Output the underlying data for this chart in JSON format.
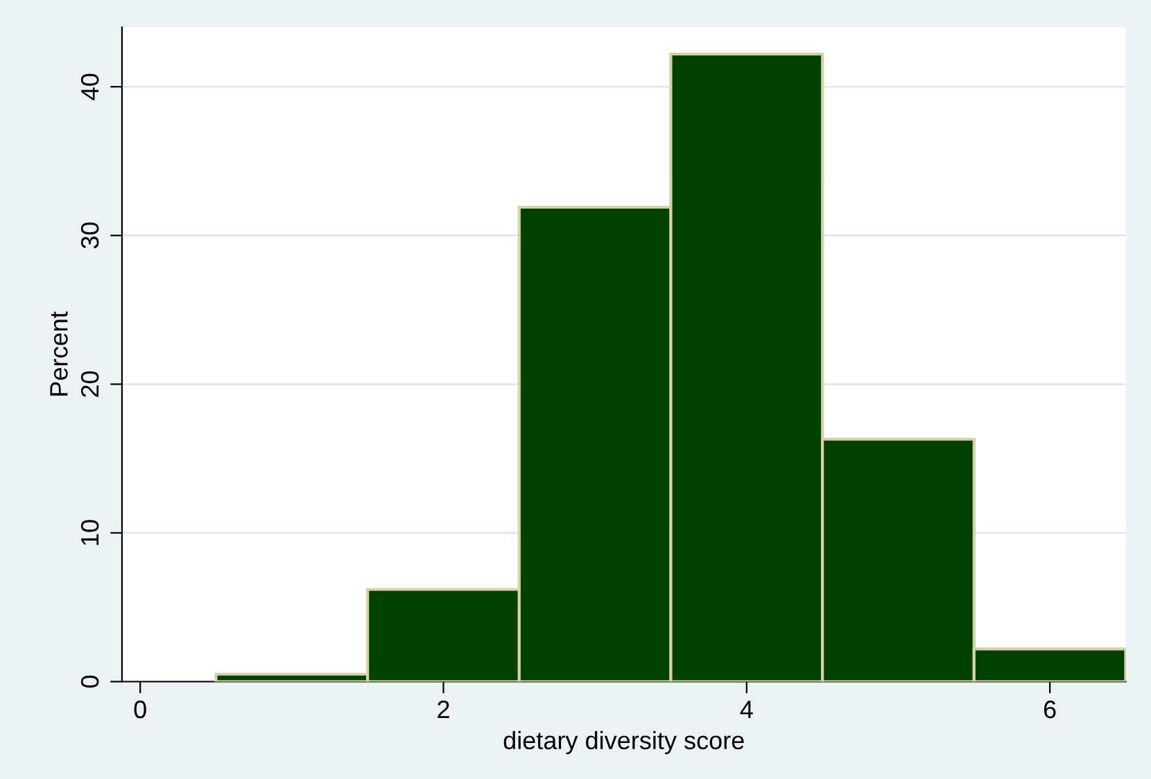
{
  "chart_data": {
    "type": "histogram",
    "xlabel": "dietary diversity score",
    "ylabel": "Percent",
    "bins": [
      0.5,
      1.5,
      2.5,
      3.5,
      4.5,
      5.5,
      6.5
    ],
    "values": [
      0.5,
      6.2,
      31.9,
      42.2,
      16.3,
      2.2
    ],
    "color": "#004000",
    "xlim": [
      -0.12,
      6.5
    ],
    "ylim": [
      0,
      44
    ],
    "xticks": [
      0,
      2,
      4,
      6
    ],
    "yticks": [
      0,
      10,
      20,
      30,
      40
    ],
    "grid": "y"
  }
}
